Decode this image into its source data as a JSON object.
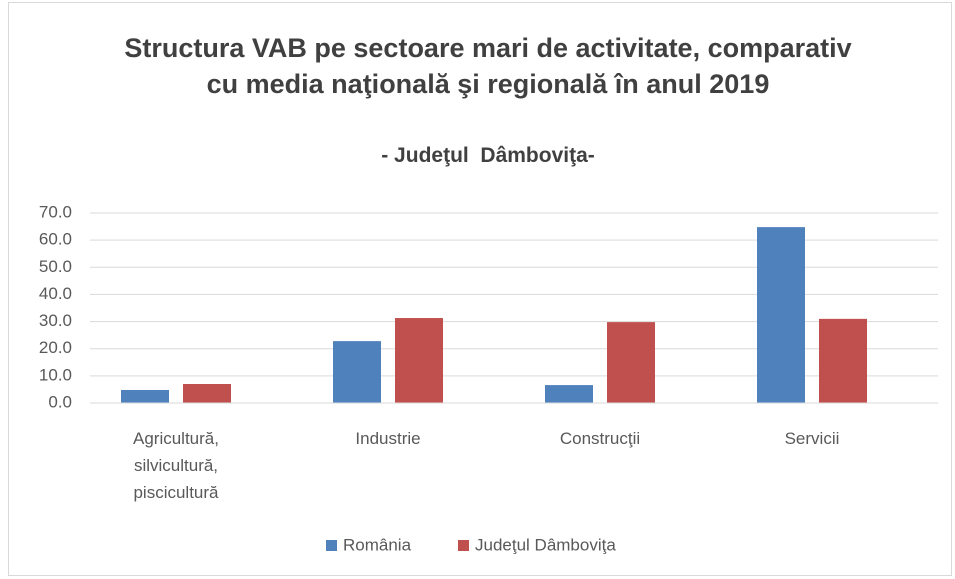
{
  "chart_data": {
    "type": "bar",
    "title": "Structura VAB pe sectoare mari de activitate, comparativ cu media naţională şi regională în anul 2019",
    "subtitle": "- Judeţul  Dâmboviţa-",
    "categories": [
      "Agricultură, silvicultură, piscicultură",
      "Industrie",
      "Construcţii",
      "Servicii"
    ],
    "series": [
      {
        "name": "România",
        "color": "#4f81bd",
        "values": [
          4.8,
          22.8,
          6.6,
          64.8
        ]
      },
      {
        "name": "Judeţul Dâmboviţa",
        "color": "#c0504d",
        "values": [
          7.0,
          31.3,
          29.8,
          31.0
        ]
      }
    ],
    "ylim": [
      0,
      70
    ],
    "yticks": [
      {
        "value": 0,
        "label": "0.0"
      },
      {
        "value": 10,
        "label": "10.0"
      },
      {
        "value": 20,
        "label": "20.0"
      },
      {
        "value": 30,
        "label": "30.0"
      },
      {
        "value": 40,
        "label": "40.0"
      },
      {
        "value": 50,
        "label": "50.0"
      },
      {
        "value": 60,
        "label": "60.0"
      },
      {
        "value": 70,
        "label": "70.0"
      }
    ],
    "grid": true,
    "legend": "bottom"
  }
}
